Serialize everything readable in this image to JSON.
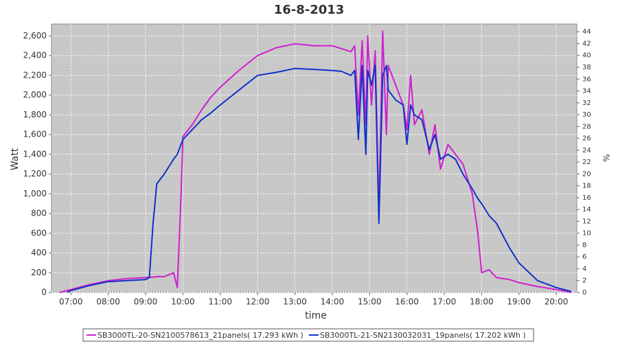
{
  "chart_data": {
    "type": "line",
    "title": "16-8-2013",
    "x_label": "time",
    "y_label": "Watt",
    "y2_label": "%",
    "x": [
      6.7,
      6.9,
      7.0,
      7.5,
      8.0,
      8.5,
      9.0,
      9.1,
      9.2,
      9.3,
      9.5,
      9.75,
      9.85,
      9.95,
      10.0,
      10.25,
      10.5,
      10.75,
      11.0,
      11.5,
      12.0,
      12.5,
      13.0,
      13.5,
      14.0,
      14.25,
      14.5,
      14.6,
      14.7,
      14.8,
      14.9,
      14.95,
      15.05,
      15.15,
      15.25,
      15.35,
      15.45,
      15.5,
      15.7,
      15.9,
      16.0,
      16.1,
      16.2,
      16.4,
      16.6,
      16.75,
      16.9,
      17.1,
      17.3,
      17.5,
      17.75,
      17.9,
      18.0,
      18.2,
      18.4,
      18.75,
      19.0,
      19.5,
      20.0,
      20.4
    ],
    "series": [
      {
        "name": "SB3000TL-20-SN2100578613_21panels( 17.293 kWh )",
        "color": "#d020d0",
        "values": [
          0,
          20,
          30,
          80,
          120,
          140,
          150,
          155,
          155,
          160,
          160,
          200,
          50,
          1000,
          1580,
          1700,
          1850,
          1980,
          2080,
          2250,
          2400,
          2480,
          2520,
          2500,
          2500,
          2470,
          2440,
          2500,
          1800,
          2550,
          1700,
          2600,
          1900,
          2450,
          820,
          2650,
          1600,
          2300,
          2100,
          1900,
          1650,
          2200,
          1700,
          1850,
          1400,
          1700,
          1250,
          1500,
          1400,
          1300,
          1000,
          600,
          200,
          230,
          150,
          130,
          100,
          60,
          30,
          0
        ]
      },
      {
        "name": "SB3000TL-21-SN2130032031_19panels( 17.202 kWh )",
        "color": "#1030c8",
        "values": [
          null,
          0,
          20,
          70,
          110,
          120,
          130,
          150,
          700,
          1100,
          1200,
          1350,
          1400,
          1500,
          1550,
          1650,
          1750,
          1820,
          1900,
          2050,
          2200,
          2230,
          2270,
          2260,
          2250,
          2240,
          2200,
          2250,
          1550,
          2300,
          1400,
          2250,
          2100,
          2300,
          700,
          2200,
          2300,
          2050,
          1950,
          1900,
          1500,
          1900,
          1800,
          1750,
          1450,
          1600,
          1350,
          1400,
          1350,
          1200,
          1050,
          950,
          900,
          780,
          700,
          450,
          300,
          120,
          50,
          10
        ]
      }
    ],
    "xlim": [
      6.48,
      20.55
    ],
    "xticks": [
      {
        "value": 7,
        "label": "07:00"
      },
      {
        "value": 8,
        "label": "08:00"
      },
      {
        "value": 9,
        "label": "09:00"
      },
      {
        "value": 10,
        "label": "10:00"
      },
      {
        "value": 11,
        "label": "11:00"
      },
      {
        "value": 12,
        "label": "12:00"
      },
      {
        "value": 13,
        "label": "13:00"
      },
      {
        "value": 14,
        "label": "14:00"
      },
      {
        "value": 15,
        "label": "15:00"
      },
      {
        "value": 16,
        "label": "16:00"
      },
      {
        "value": 17,
        "label": "17:00"
      },
      {
        "value": 18,
        "label": "18:00"
      },
      {
        "value": 19,
        "label": "19:00"
      },
      {
        "value": 20,
        "label": "20:00"
      }
    ],
    "ylim": [
      0,
      2720
    ],
    "yticks": [
      0,
      200,
      400,
      600,
      800,
      {
        "value": 1000,
        "label": "1,000"
      },
      {
        "value": 1200,
        "label": "1,200"
      },
      {
        "value": 1400,
        "label": "1,400"
      },
      {
        "value": 1600,
        "label": "1,600"
      },
      {
        "value": 1800,
        "label": "1,800"
      },
      {
        "value": 2000,
        "label": "2,000"
      },
      {
        "value": 2200,
        "label": "2,200"
      },
      {
        "value": 2400,
        "label": "2,400"
      },
      {
        "value": 2600,
        "label": "2,600"
      }
    ],
    "y2lim": [
      0,
      45.3
    ],
    "y2ticks": [
      0,
      2,
      4,
      6,
      8,
      10,
      12,
      14,
      16,
      18,
      20,
      22,
      24,
      26,
      28,
      30,
      32,
      34,
      36,
      38,
      40,
      42,
      44
    ],
    "grid": true,
    "legend": "bottom"
  }
}
